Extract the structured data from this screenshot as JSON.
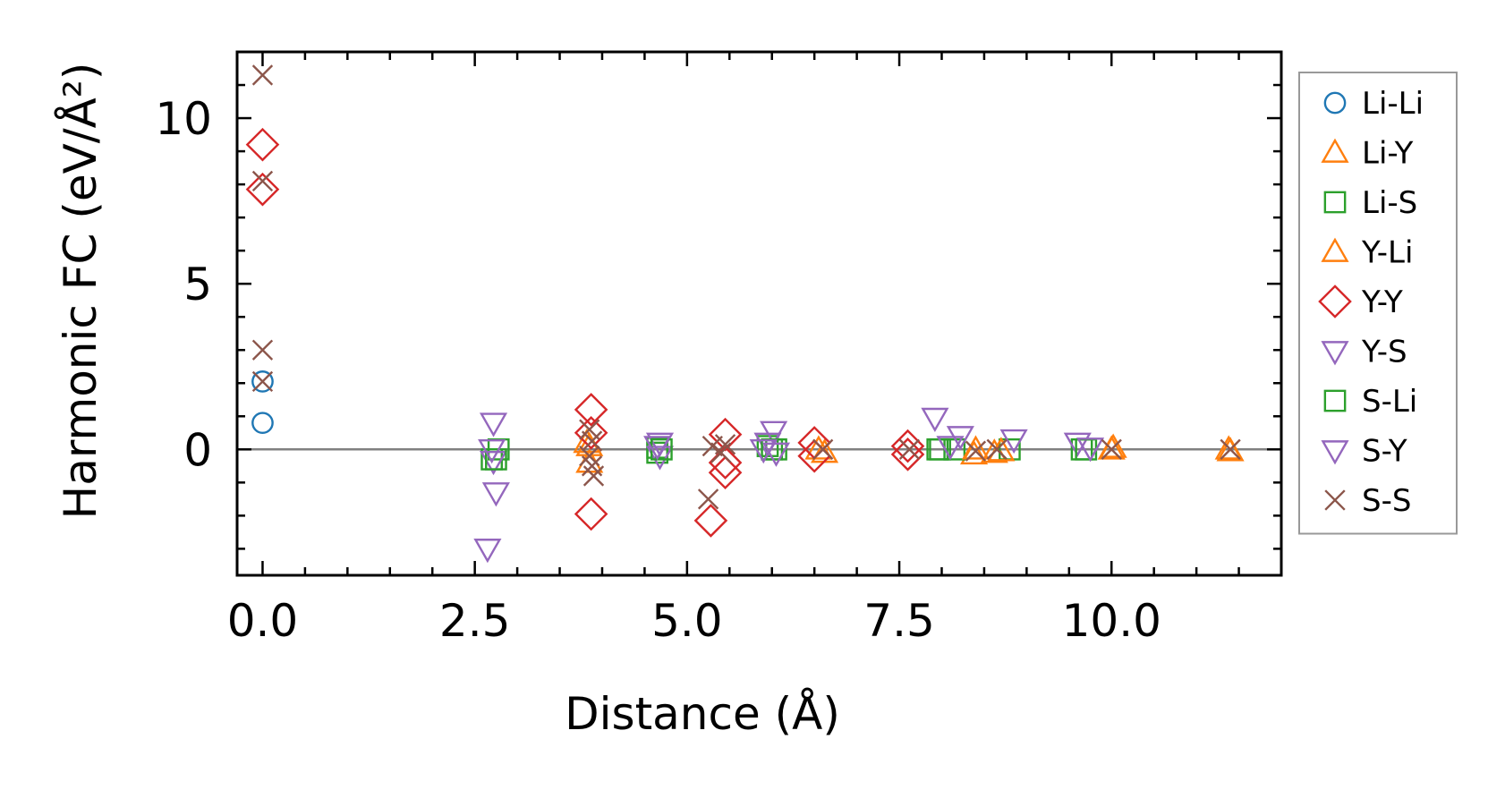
{
  "chart_data": {
    "type": "scatter",
    "title": "",
    "xlabel": "Distance (Å)",
    "ylabel": "Harmonic FC (eV/Å²)",
    "xlim": [
      -0.3,
      12.0
    ],
    "ylim": [
      -3.8,
      12.0
    ],
    "xticks": [
      0.0,
      2.5,
      5.0,
      7.5,
      10.0
    ],
    "xtick_labels": [
      "0.0",
      "2.5",
      "5.0",
      "7.5",
      "10.0"
    ],
    "yticks": [
      0,
      5,
      10
    ],
    "ytick_labels": [
      "0",
      "5",
      "10"
    ],
    "grid": false,
    "zero_line": true,
    "legend_position": "outside-right",
    "series": [
      {
        "name": "Li-Li",
        "marker": "circle",
        "color": "#1f77b4",
        "points": [
          [
            0.0,
            2.05
          ],
          [
            0.0,
            0.8
          ]
        ]
      },
      {
        "name": "Li-Y",
        "marker": "triangle-up",
        "color": "#ff7f0e",
        "points": [
          [
            3.85,
            -0.4
          ],
          [
            3.85,
            0.1
          ],
          [
            6.62,
            -0.1
          ],
          [
            8.38,
            -0.15
          ],
          [
            8.62,
            -0.1
          ],
          [
            10.0,
            0.0
          ],
          [
            11.4,
            -0.05
          ]
        ]
      },
      {
        "name": "Li-S",
        "marker": "square",
        "color": "#2ca02c",
        "points": [
          [
            2.7,
            -0.3
          ],
          [
            2.78,
            0.0
          ],
          [
            4.65,
            0.05
          ],
          [
            4.65,
            -0.1
          ],
          [
            5.95,
            0.1
          ],
          [
            6.05,
            0.0
          ],
          [
            7.95,
            0.0
          ],
          [
            8.15,
            0.0
          ],
          [
            8.8,
            0.0
          ],
          [
            9.65,
            0.0
          ]
        ]
      },
      {
        "name": "Y-Li",
        "marker": "triangle-up",
        "color": "#ff7f0e",
        "points": [
          [
            3.82,
            0.2
          ],
          [
            6.55,
            0.0
          ],
          [
            8.4,
            0.0
          ],
          [
            8.7,
            -0.05
          ],
          [
            10.02,
            0.05
          ],
          [
            11.38,
            0.0
          ]
        ]
      },
      {
        "name": "Y-Y",
        "marker": "diamond",
        "color": "#d62728",
        "points": [
          [
            0.0,
            9.2
          ],
          [
            0.0,
            7.85
          ],
          [
            3.87,
            1.2
          ],
          [
            3.87,
            0.5
          ],
          [
            3.87,
            -1.95
          ],
          [
            5.28,
            -2.15
          ],
          [
            5.45,
            0.45
          ],
          [
            5.45,
            -0.4
          ],
          [
            5.45,
            -0.7
          ],
          [
            6.5,
            0.2
          ],
          [
            6.5,
            -0.2
          ],
          [
            7.6,
            0.1
          ],
          [
            7.6,
            -0.15
          ]
        ]
      },
      {
        "name": "Y-S",
        "marker": "triangle-down",
        "color": "#9467bd",
        "points": [
          [
            2.65,
            -3.0
          ],
          [
            2.72,
            0.8
          ],
          [
            2.72,
            -0.35
          ],
          [
            2.75,
            -1.3
          ],
          [
            4.68,
            0.2
          ],
          [
            4.68,
            -0.2
          ],
          [
            6.02,
            0.55
          ],
          [
            5.95,
            0.2
          ],
          [
            7.92,
            0.95
          ],
          [
            8.22,
            0.4
          ],
          [
            8.85,
            0.3
          ],
          [
            9.6,
            0.2
          ]
        ]
      },
      {
        "name": "S-Li",
        "marker": "square",
        "color": "#2ca02c",
        "points": [
          [
            2.75,
            -0.3
          ],
          [
            4.7,
            0.0
          ],
          [
            6.0,
            0.0
          ],
          [
            7.98,
            0.0
          ],
          [
            9.7,
            0.0
          ]
        ]
      },
      {
        "name": "S-Y",
        "marker": "triangle-down",
        "color": "#9467bd",
        "points": [
          [
            2.7,
            0.0
          ],
          [
            4.65,
            0.1
          ],
          [
            5.9,
            0.0
          ],
          [
            6.05,
            -0.1
          ],
          [
            8.1,
            0.1
          ],
          [
            9.75,
            0.05
          ]
        ]
      },
      {
        "name": "S-S",
        "marker": "x",
        "color": "#8c564b",
        "points": [
          [
            0.0,
            11.3
          ],
          [
            0.0,
            8.1
          ],
          [
            0.0,
            3.0
          ],
          [
            0.0,
            2.05
          ],
          [
            3.85,
            0.6
          ],
          [
            3.85,
            -0.2
          ],
          [
            3.88,
            -0.5
          ],
          [
            3.9,
            -0.8
          ],
          [
            3.88,
            0.25
          ],
          [
            5.25,
            -1.5
          ],
          [
            5.3,
            0.1
          ],
          [
            5.4,
            -0.1
          ],
          [
            5.45,
            0.15
          ],
          [
            6.6,
            0.0
          ],
          [
            7.62,
            0.0
          ],
          [
            8.4,
            -0.05
          ],
          [
            8.65,
            0.0
          ],
          [
            10.0,
            0.0
          ],
          [
            11.4,
            0.0
          ]
        ]
      }
    ]
  }
}
